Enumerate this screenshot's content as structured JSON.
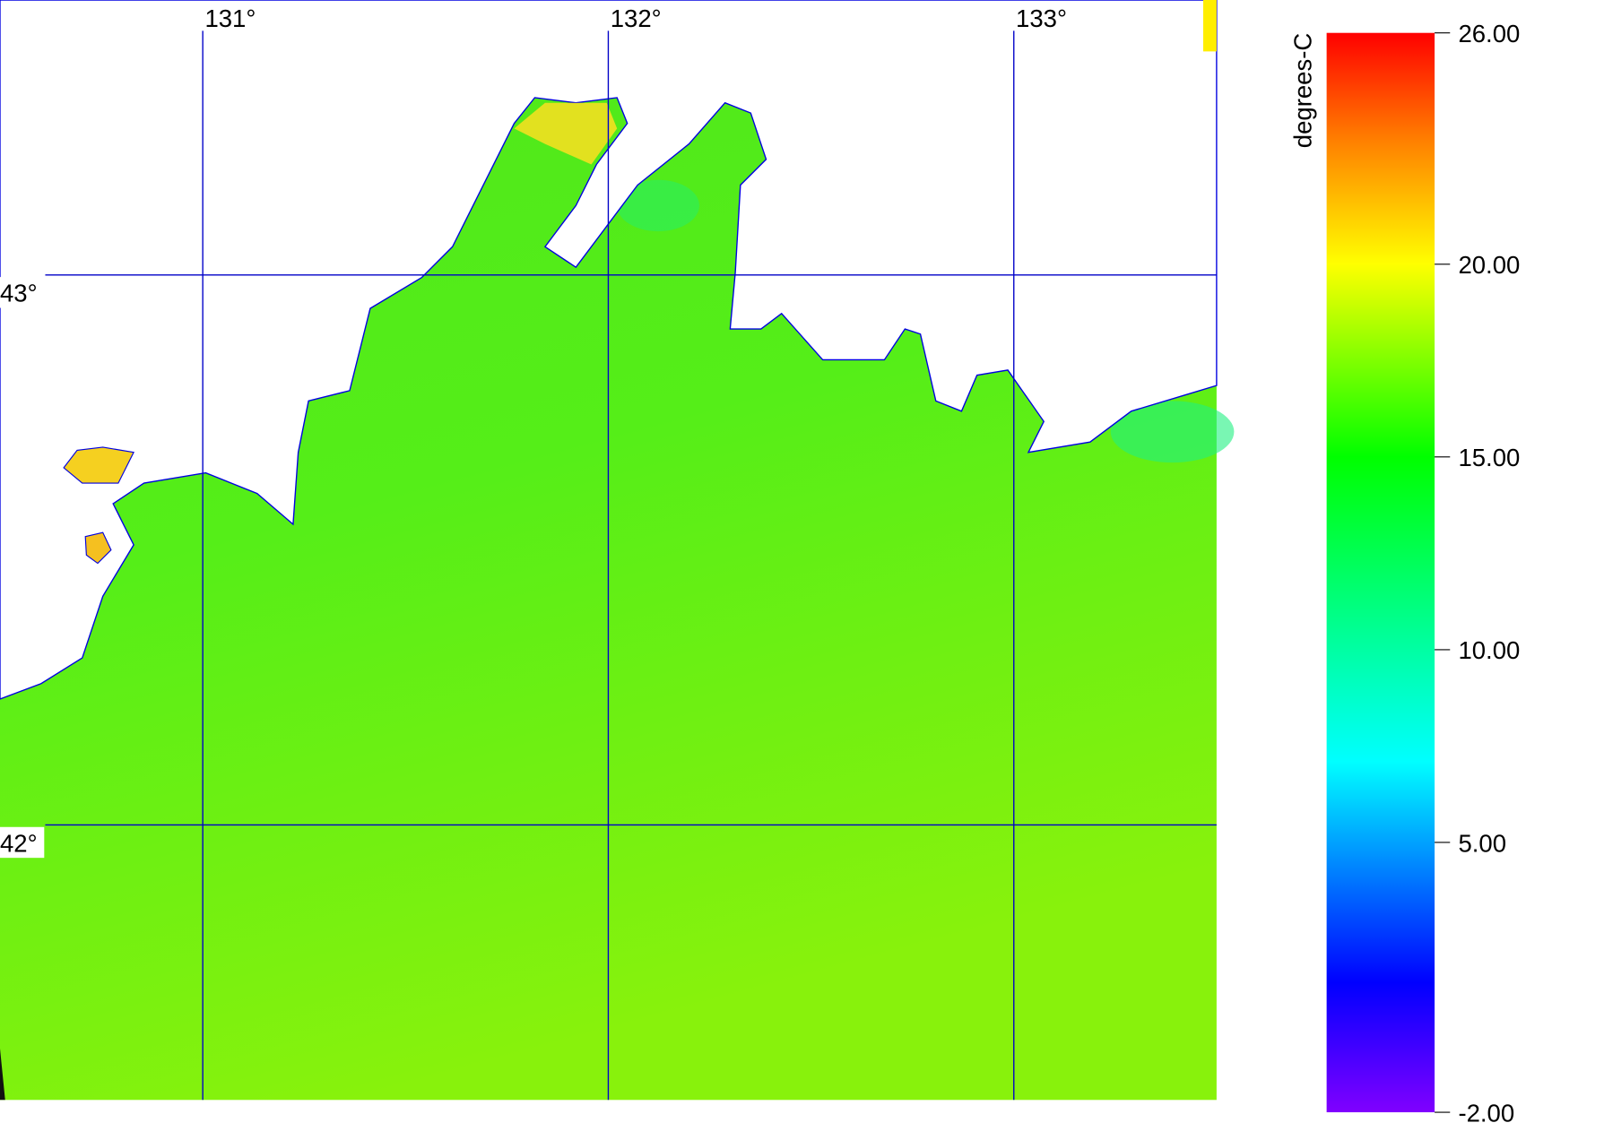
{
  "map": {
    "xlim": [
      130.5,
      133.5
    ],
    "ylim": [
      41.5,
      43.5
    ],
    "xticks": [
      {
        "value": 131,
        "label": "131°"
      },
      {
        "value": 132,
        "label": "132°"
      },
      {
        "value": 133,
        "label": "133°"
      }
    ],
    "yticks": [
      {
        "value": 43,
        "label": "43°"
      },
      {
        "value": 42,
        "label": "42°"
      }
    ]
  },
  "colorbar": {
    "title": "degrees-C",
    "lim": [
      -2,
      26
    ],
    "ticks": [
      {
        "value": 26,
        "label": "26.00"
      },
      {
        "value": 20,
        "label": "20.00"
      },
      {
        "value": 15,
        "label": "15.00"
      },
      {
        "value": 10,
        "label": "10.00"
      },
      {
        "value": 5,
        "label": "5.00"
      },
      {
        "value": -2,
        "label": "-2.00"
      }
    ]
  }
}
